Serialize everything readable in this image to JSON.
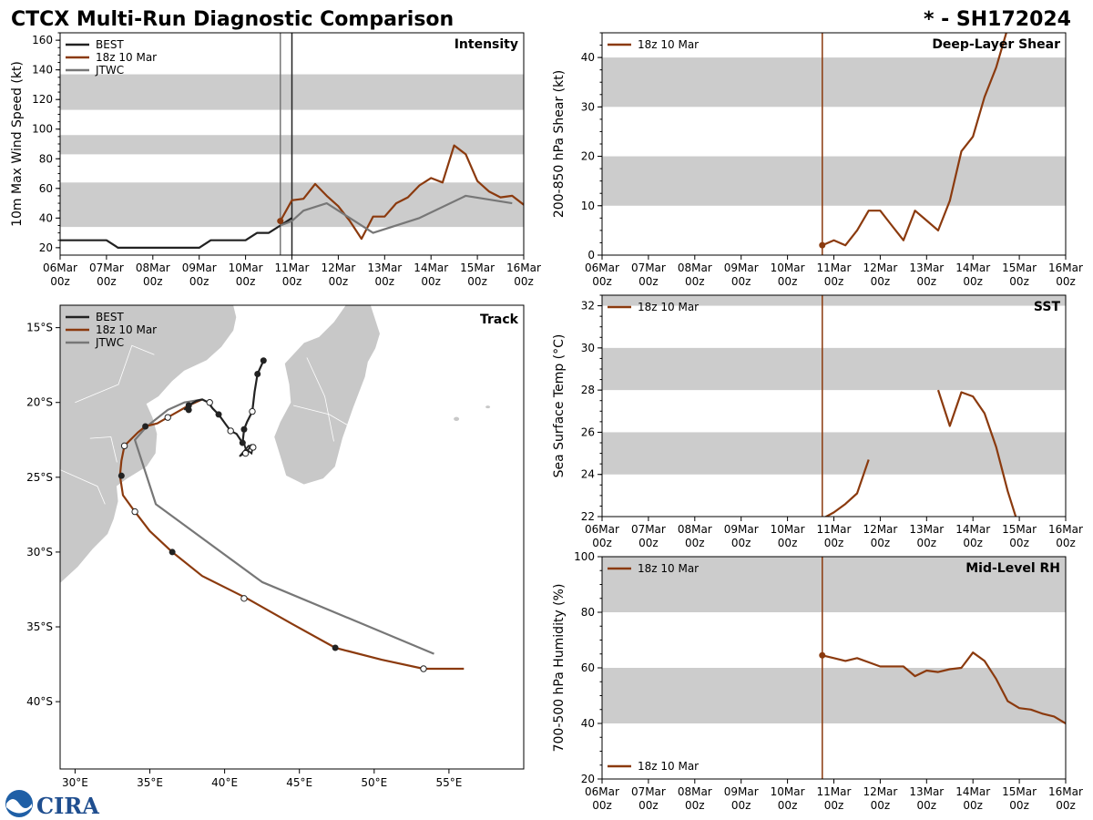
{
  "header": {
    "title": "CTCX Multi-Run Diagnostic Comparison",
    "storm_id": "* - SH172024"
  },
  "colors": {
    "best": "#222222",
    "run": "#8B3A0E",
    "jtwc": "#777777",
    "band": "#cccccc",
    "land": "#c8c8c8"
  },
  "logo": {
    "text": "CIRA"
  },
  "time_axis": {
    "ticks": [
      "06Mar\n00z",
      "07Mar\n00z",
      "08Mar\n00z",
      "09Mar\n00z",
      "10Mar\n00z",
      "11Mar\n00z",
      "12Mar\n00z",
      "13Mar\n00z",
      "14Mar\n00z",
      "15Mar\n00z",
      "16Mar\n00z"
    ],
    "tick_top": [
      "06Mar",
      "07Mar",
      "08Mar",
      "09Mar",
      "10Mar",
      "11Mar",
      "12Mar",
      "13Mar",
      "14Mar",
      "15Mar",
      "16Mar"
    ],
    "tick_bottom": "00z",
    "range_days": [
      0,
      10
    ]
  },
  "chart_data": [
    {
      "id": "intensity",
      "type": "line",
      "title": "Intensity",
      "ylabel": "10m Max Wind Speed (kt)",
      "ylim": [
        15,
        165
      ],
      "yticks": [
        20,
        40,
        60,
        80,
        100,
        120,
        140,
        160
      ],
      "bands": [
        [
          34,
          64
        ],
        [
          83,
          96
        ],
        [
          113,
          137
        ]
      ],
      "vlines": [
        {
          "x": 4.75,
          "color": "jtwc"
        },
        {
          "x": 5.0,
          "color": "best"
        }
      ],
      "legend": [
        "BEST",
        "18z 10 Mar",
        "JTWC"
      ],
      "series": [
        {
          "name": "BEST",
          "color": "best",
          "x": [
            0,
            0.25,
            0.5,
            0.75,
            1,
            1.25,
            1.5,
            1.75,
            2,
            2.25,
            2.5,
            2.75,
            3,
            3.25,
            3.5,
            3.75,
            4,
            4.25,
            4.5,
            4.75,
            5
          ],
          "y": [
            25,
            25,
            25,
            25,
            25,
            20,
            20,
            20,
            20,
            20,
            20,
            20,
            20,
            25,
            25,
            25,
            25,
            30,
            30,
            35,
            40
          ]
        },
        {
          "name": "18z 10 Mar",
          "color": "run",
          "x": [
            4.75,
            5,
            5.25,
            5.5,
            5.75,
            6,
            6.25,
            6.5,
            6.75,
            7,
            7.25,
            7.5,
            7.75,
            8,
            8.25,
            8.5,
            8.75,
            9,
            9.25,
            9.5,
            9.75,
            10
          ],
          "y": [
            38,
            52,
            53,
            63,
            55,
            48,
            38,
            26,
            41,
            41,
            50,
            54,
            62,
            67,
            64,
            89,
            83,
            65,
            58,
            54,
            55,
            49
          ]
        },
        {
          "name": "JTWC",
          "color": "jtwc",
          "x": [
            4.75,
            5,
            5.25,
            5.75,
            6.25,
            6.75,
            7.75,
            8.75,
            9.75
          ],
          "y": [
            35,
            38,
            45,
            50,
            40,
            30,
            40,
            55,
            50
          ]
        }
      ],
      "markers": [
        {
          "x": 4.75,
          "y": 38,
          "color": "run"
        }
      ]
    },
    {
      "id": "shear",
      "type": "line",
      "title": "Deep-Layer Shear",
      "ylabel": "200-850 hPa Shear (kt)",
      "ylim": [
        0,
        45
      ],
      "yticks": [
        0,
        10,
        20,
        30,
        40
      ],
      "bands": [
        [
          10,
          20
        ],
        [
          30,
          40
        ]
      ],
      "vlines": [
        {
          "x": 4.75,
          "color": "run"
        }
      ],
      "legend": [
        "18z 10 Mar"
      ],
      "series": [
        {
          "name": "18z 10 Mar",
          "color": "run",
          "x": [
            4.75,
            5,
            5.25,
            5.5,
            5.75,
            6,
            6.25,
            6.5,
            6.75,
            7,
            7.25,
            7.5,
            7.75,
            8,
            8.25,
            8.5,
            8.75
          ],
          "y": [
            2,
            3,
            2,
            5,
            9,
            9,
            6,
            3,
            9,
            7,
            5,
            11,
            21,
            24,
            32,
            38,
            46
          ]
        }
      ],
      "markers": [
        {
          "x": 4.75,
          "y": 2,
          "color": "run"
        }
      ]
    },
    {
      "id": "sst",
      "type": "line",
      "title": "SST",
      "ylabel": "Sea Surface Temp (°C)",
      "ylim": [
        22,
        32.5
      ],
      "yticks": [
        22,
        24,
        26,
        28,
        30,
        32
      ],
      "bands": [
        [
          24,
          26
        ],
        [
          28,
          30
        ],
        [
          32,
          32.5
        ]
      ],
      "vlines": [
        {
          "x": 4.75,
          "color": "run"
        }
      ],
      "legend": [
        "18z 10 Mar"
      ],
      "series": [
        {
          "name": "18z 10 Mar seg1",
          "color": "run",
          "x": [
            4.75,
            5,
            5.25,
            5.5,
            5.75
          ],
          "y": [
            21.9,
            22.2,
            22.6,
            23.1,
            24.7
          ]
        },
        {
          "name": "18z 10 Mar seg2",
          "color": "run",
          "x": [
            7.25,
            7.5,
            7.75,
            8,
            8.25,
            8.5,
            8.75,
            8.95
          ],
          "y": [
            28.0,
            26.3,
            27.9,
            27.7,
            26.9,
            25.3,
            23.2,
            21.8
          ]
        }
      ],
      "markers": []
    },
    {
      "id": "rh",
      "type": "line",
      "title": "Mid-Level RH",
      "ylabel": "700-500 hPa Humidity (%)",
      "ylim": [
        20,
        100
      ],
      "yticks": [
        20,
        40,
        60,
        80,
        100
      ],
      "bands": [
        [
          40,
          60
        ],
        [
          80,
          100
        ]
      ],
      "vlines": [
        {
          "x": 4.75,
          "color": "run"
        }
      ],
      "legend": [
        "18z 10 Mar"
      ],
      "series": [
        {
          "name": "18z 10 Mar",
          "color": "run",
          "x": [
            4.75,
            5,
            5.25,
            5.5,
            5.75,
            6,
            6.25,
            6.5,
            6.75,
            7,
            7.25,
            7.5,
            7.75,
            8,
            8.25,
            8.5,
            8.75,
            9,
            9.25,
            9.5,
            9.75,
            10
          ],
          "y": [
            64.5,
            63.5,
            62.5,
            63.5,
            62,
            60.5,
            60.5,
            60.5,
            57,
            59,
            58.5,
            59.5,
            60,
            65.5,
            62.5,
            56,
            48,
            45.5,
            45,
            43.5,
            42.5,
            40
          ]
        }
      ],
      "markers": [
        {
          "x": 4.75,
          "y": 64.5,
          "color": "run"
        }
      ]
    },
    {
      "id": "track",
      "type": "line",
      "title": "Track",
      "xlim": [
        29,
        60
      ],
      "ylim": [
        -44.5,
        -13.5
      ],
      "xticks": [
        30,
        35,
        40,
        45,
        50,
        55
      ],
      "xtick_labels": [
        "30°E",
        "35°E",
        "40°E",
        "45°E",
        "50°E",
        "55°E"
      ],
      "yticks": [
        -15,
        -20,
        -25,
        -30,
        -35,
        -40
      ],
      "ytick_labels": [
        "15°S",
        "20°S",
        "25°S",
        "30°S",
        "35°S",
        "40°S"
      ],
      "legend": [
        "BEST",
        "18z 10 Mar",
        "JTWC"
      ],
      "series": [
        {
          "name": "BEST",
          "color": "best",
          "lon": [
            42.6,
            42.2,
            42.0,
            41.85,
            41.5,
            41.3,
            41.2,
            40.8,
            40.4,
            40.1,
            39.6,
            39.2,
            38.9,
            38.5,
            38.1,
            37.6,
            37.3
          ],
          "lat": [
            -17.2,
            -18.1,
            -19.3,
            -20.6,
            -21.3,
            -21.8,
            -22.7,
            -22.1,
            -21.9,
            -21.5,
            -20.8,
            -20.4,
            -20.0,
            -19.8,
            -19.9,
            -20.2,
            -20.5
          ]
        },
        {
          "name": "18z 10 Mar",
          "color": "run",
          "lon": [
            38.5,
            37.6,
            36.9,
            36.2,
            35.5,
            34.7,
            34.2,
            33.3,
            33.1,
            33.0,
            33.2,
            34.0,
            35.0,
            36.5,
            38.5,
            41.5,
            44.5,
            47.4,
            50.5,
            53.3,
            56.0
          ],
          "lat": [
            -19.8,
            -20.2,
            -20.6,
            -21.0,
            -21.4,
            -21.6,
            -22.0,
            -22.9,
            -23.9,
            -24.9,
            -26.2,
            -27.3,
            -28.6,
            -30.0,
            -31.6,
            -33.1,
            -34.8,
            -36.4,
            -37.2,
            -37.8,
            -37.8
          ]
        },
        {
          "name": "JTWC",
          "color": "jtwc",
          "lon": [
            38.5,
            37.3,
            36.2,
            34.8,
            34.0,
            35.4,
            42.5,
            54.0
          ],
          "lat": [
            -19.8,
            -20.0,
            -20.5,
            -21.6,
            -22.5,
            -26.8,
            -32.0,
            -36.8
          ]
        }
      ],
      "best_extra": {
        "lon": [
          41.3,
          41.4,
          41.8,
          41.9,
          41.6,
          41.0,
          41.5,
          41.8
        ],
        "lat": [
          -22.7,
          -23.1,
          -23.4,
          -22.9,
          -22.9,
          -23.6,
          -23.3,
          -22.8
        ]
      },
      "run_markers_filled": [
        [
          37.6,
          -20.2
        ],
        [
          34.7,
          -21.6
        ],
        [
          33.1,
          -24.9
        ],
        [
          36.5,
          -30.0
        ],
        [
          47.4,
          -36.4
        ]
      ],
      "run_markers_open": [
        [
          36.2,
          -21.0
        ],
        [
          33.3,
          -22.9
        ],
        [
          34.0,
          -27.3
        ],
        [
          41.3,
          -33.1
        ],
        [
          53.3,
          -37.8
        ]
      ],
      "best_markers_filled": [
        [
          42.6,
          -17.2
        ],
        [
          42.2,
          -18.1
        ],
        [
          41.3,
          -21.8
        ],
        [
          41.2,
          -22.7
        ],
        [
          39.6,
          -20.8
        ],
        [
          37.6,
          -20.5
        ]
      ],
      "best_markers_open": [
        [
          41.85,
          -20.6
        ],
        [
          40.4,
          -21.9
        ],
        [
          39.0,
          -20.0
        ],
        [
          41.9,
          -23.0
        ],
        [
          41.4,
          -23.4
        ]
      ]
    }
  ]
}
